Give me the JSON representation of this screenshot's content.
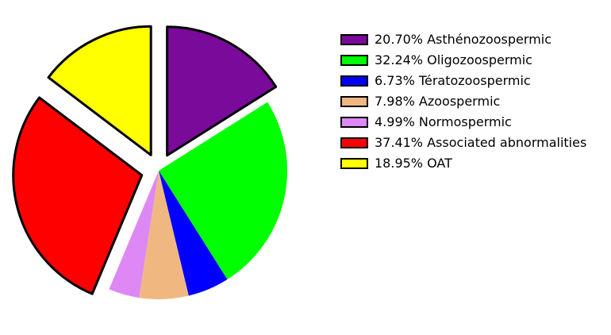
{
  "chart_data": {
    "type": "pie",
    "categories": [
      "Asthénozoospermic",
      "Oligozoospermic",
      "Tératozoospermic",
      "Azoospermic",
      "Normospermic",
      "Associated abnormalities",
      "OAT"
    ],
    "values": [
      20.7,
      32.24,
      6.73,
      7.98,
      4.99,
      37.41,
      18.95
    ],
    "value_labels": [
      "20.70%",
      "32.24%",
      "6.73%",
      "7.98%",
      "4.99%",
      "37.41%",
      "18.95%"
    ],
    "colors": [
      "#7a0a9a",
      "#00ff00",
      "#0000ff",
      "#f0b880",
      "#dd88f5",
      "#ff0000",
      "#ffff00"
    ],
    "exploded": [
      true,
      false,
      false,
      false,
      false,
      true,
      true
    ],
    "legend": "right"
  }
}
